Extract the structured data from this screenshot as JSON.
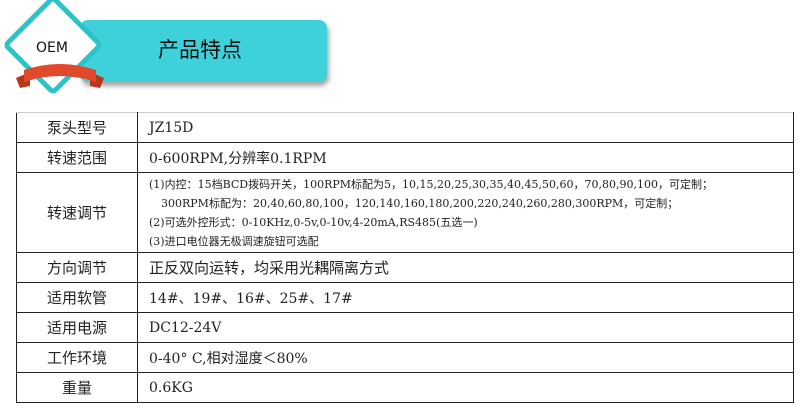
{
  "header": {
    "badge": "OEM",
    "title": "产品特点",
    "accent": "#3ed1da",
    "ribbon_color": "#e0492a"
  },
  "specs": [
    {
      "label": "泵头型号",
      "value": "JZ15D"
    },
    {
      "label": "转速范围",
      "value": "0-600RPM,分辨率0.1RPM"
    },
    {
      "label": "转速调节",
      "lines": [
        "(1)内控：15档BCD拨码开关，100RPM标配为5，10,15,20,25,30,35,40,45,50,60，70,80,90,100，可定制；",
        "300RPM标配为：20,40,60,80,100，120,140,160,180,200,220,240,260,280,300RPM，可定制；",
        "(2)可选外控形式：0-10KHz,0-5v,0-10v,4-20mA,RS485(五选一)",
        "(3)进口电位器无极调速旋钮可选配"
      ]
    },
    {
      "label": "方向调节",
      "value": "正反双向运转，均采用光耦隔离方式"
    },
    {
      "label": "适用软管",
      "value": "14#、19#、16#、25#、17#"
    },
    {
      "label": "适用电源",
      "value": "DC12-24V"
    },
    {
      "label": "工作环境",
      "value": "0-40° C,相对湿度＜80%"
    },
    {
      "label": "重量",
      "value": "0.6KG"
    }
  ]
}
